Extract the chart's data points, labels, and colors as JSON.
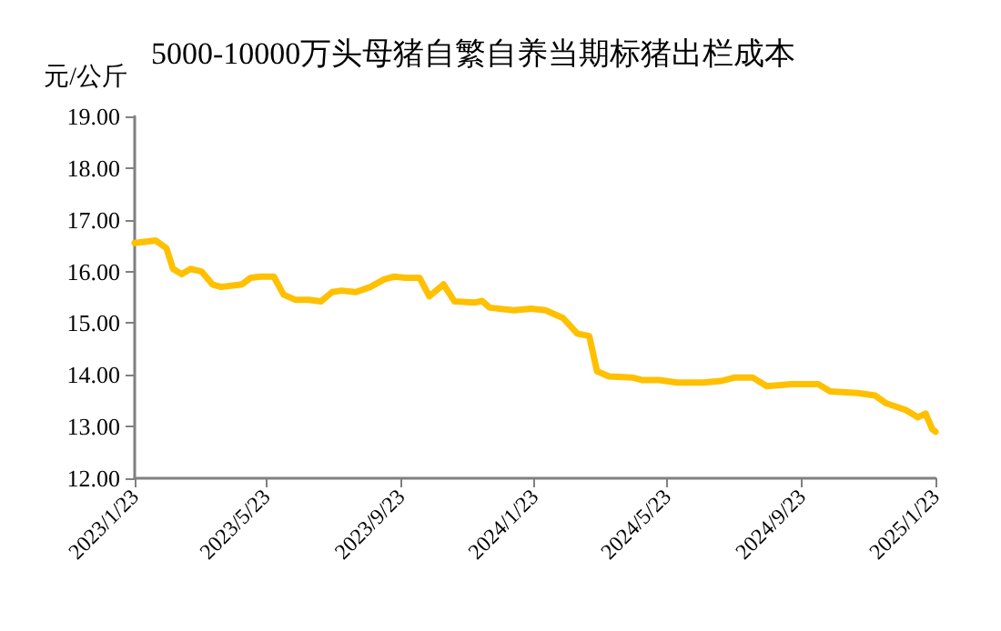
{
  "chart_data": {
    "type": "line",
    "title": "5000-10000万头母猪自繁自养当期标猪出栏成本",
    "ylabel": "元/公斤",
    "x": [
      "2023-01-23",
      "2023-02-11",
      "2023-02-21",
      "2023-02-27",
      "2023-03-07",
      "2023-03-15",
      "2023-03-25",
      "2023-04-04",
      "2023-04-12",
      "2023-04-23",
      "2023-05-01",
      "2023-05-09",
      "2023-05-18",
      "2023-05-30",
      "2023-06-08",
      "2023-06-19",
      "2023-07-01",
      "2023-07-12",
      "2023-07-22",
      "2023-07-31",
      "2023-08-13",
      "2023-08-26",
      "2023-09-08",
      "2023-09-17",
      "2023-09-27",
      "2023-10-10",
      "2023-10-19",
      "2023-11-01",
      "2023-11-11",
      "2023-11-30",
      "2023-12-06",
      "2023-12-13",
      "2024-01-04",
      "2024-01-20",
      "2024-02-02",
      "2024-02-18",
      "2024-03-02",
      "2024-03-13",
      "2024-03-20",
      "2024-03-31",
      "2024-04-21",
      "2024-04-30",
      "2024-05-16",
      "2024-06-01",
      "2024-06-25",
      "2024-07-11",
      "2024-07-24",
      "2024-08-09",
      "2024-08-22",
      "2024-09-14",
      "2024-10-08",
      "2024-10-19",
      "2024-11-13",
      "2024-11-29",
      "2024-12-09",
      "2024-12-27",
      "2025-01-07",
      "2025-01-14",
      "2025-01-20",
      "2025-01-23"
    ],
    "series": [
      {
        "color": "#ffc000",
        "values": [
          16.55,
          16.6,
          16.45,
          16.05,
          15.95,
          16.05,
          16.0,
          15.75,
          15.7,
          15.73,
          15.75,
          15.88,
          15.9,
          15.9,
          15.55,
          15.45,
          15.45,
          15.42,
          15.6,
          15.63,
          15.6,
          15.7,
          15.85,
          15.9,
          15.88,
          15.88,
          15.52,
          15.75,
          15.42,
          15.4,
          15.43,
          15.3,
          15.25,
          15.28,
          15.25,
          15.1,
          14.8,
          14.75,
          14.07,
          13.97,
          13.95,
          13.9,
          13.9,
          13.85,
          13.85,
          13.88,
          13.95,
          13.95,
          13.78,
          13.82,
          13.82,
          13.68,
          13.65,
          13.6,
          13.45,
          13.32,
          13.18,
          13.25,
          12.95,
          12.9
        ]
      }
    ],
    "xlim": [
      "2023-01-23",
      "2025-01-23"
    ],
    "xticks": [
      {
        "value": "2023-01-23",
        "label": "2023/1/23"
      },
      {
        "value": "2023-05-23",
        "label": "2023/5/23"
      },
      {
        "value": "2023-09-23",
        "label": "2023/9/23"
      },
      {
        "value": "2024-01-23",
        "label": "2024/1/23"
      },
      {
        "value": "2024-05-23",
        "label": "2024/5/23"
      },
      {
        "value": "2024-09-23",
        "label": "2024/9/23"
      },
      {
        "value": "2025-01-23",
        "label": "2025/1/23"
      }
    ],
    "ylim": [
      12,
      19
    ],
    "yticks": [
      {
        "value": 12,
        "label": "12.00"
      },
      {
        "value": 13,
        "label": "13.00"
      },
      {
        "value": 14,
        "label": "14.00"
      },
      {
        "value": 15,
        "label": "15.00"
      },
      {
        "value": 16,
        "label": "16.00"
      },
      {
        "value": 17,
        "label": "17.00"
      },
      {
        "value": 18,
        "label": "18.00"
      },
      {
        "value": 19,
        "label": "19.00"
      }
    ],
    "grid": false,
    "marker": "none",
    "line_style": "solid"
  }
}
